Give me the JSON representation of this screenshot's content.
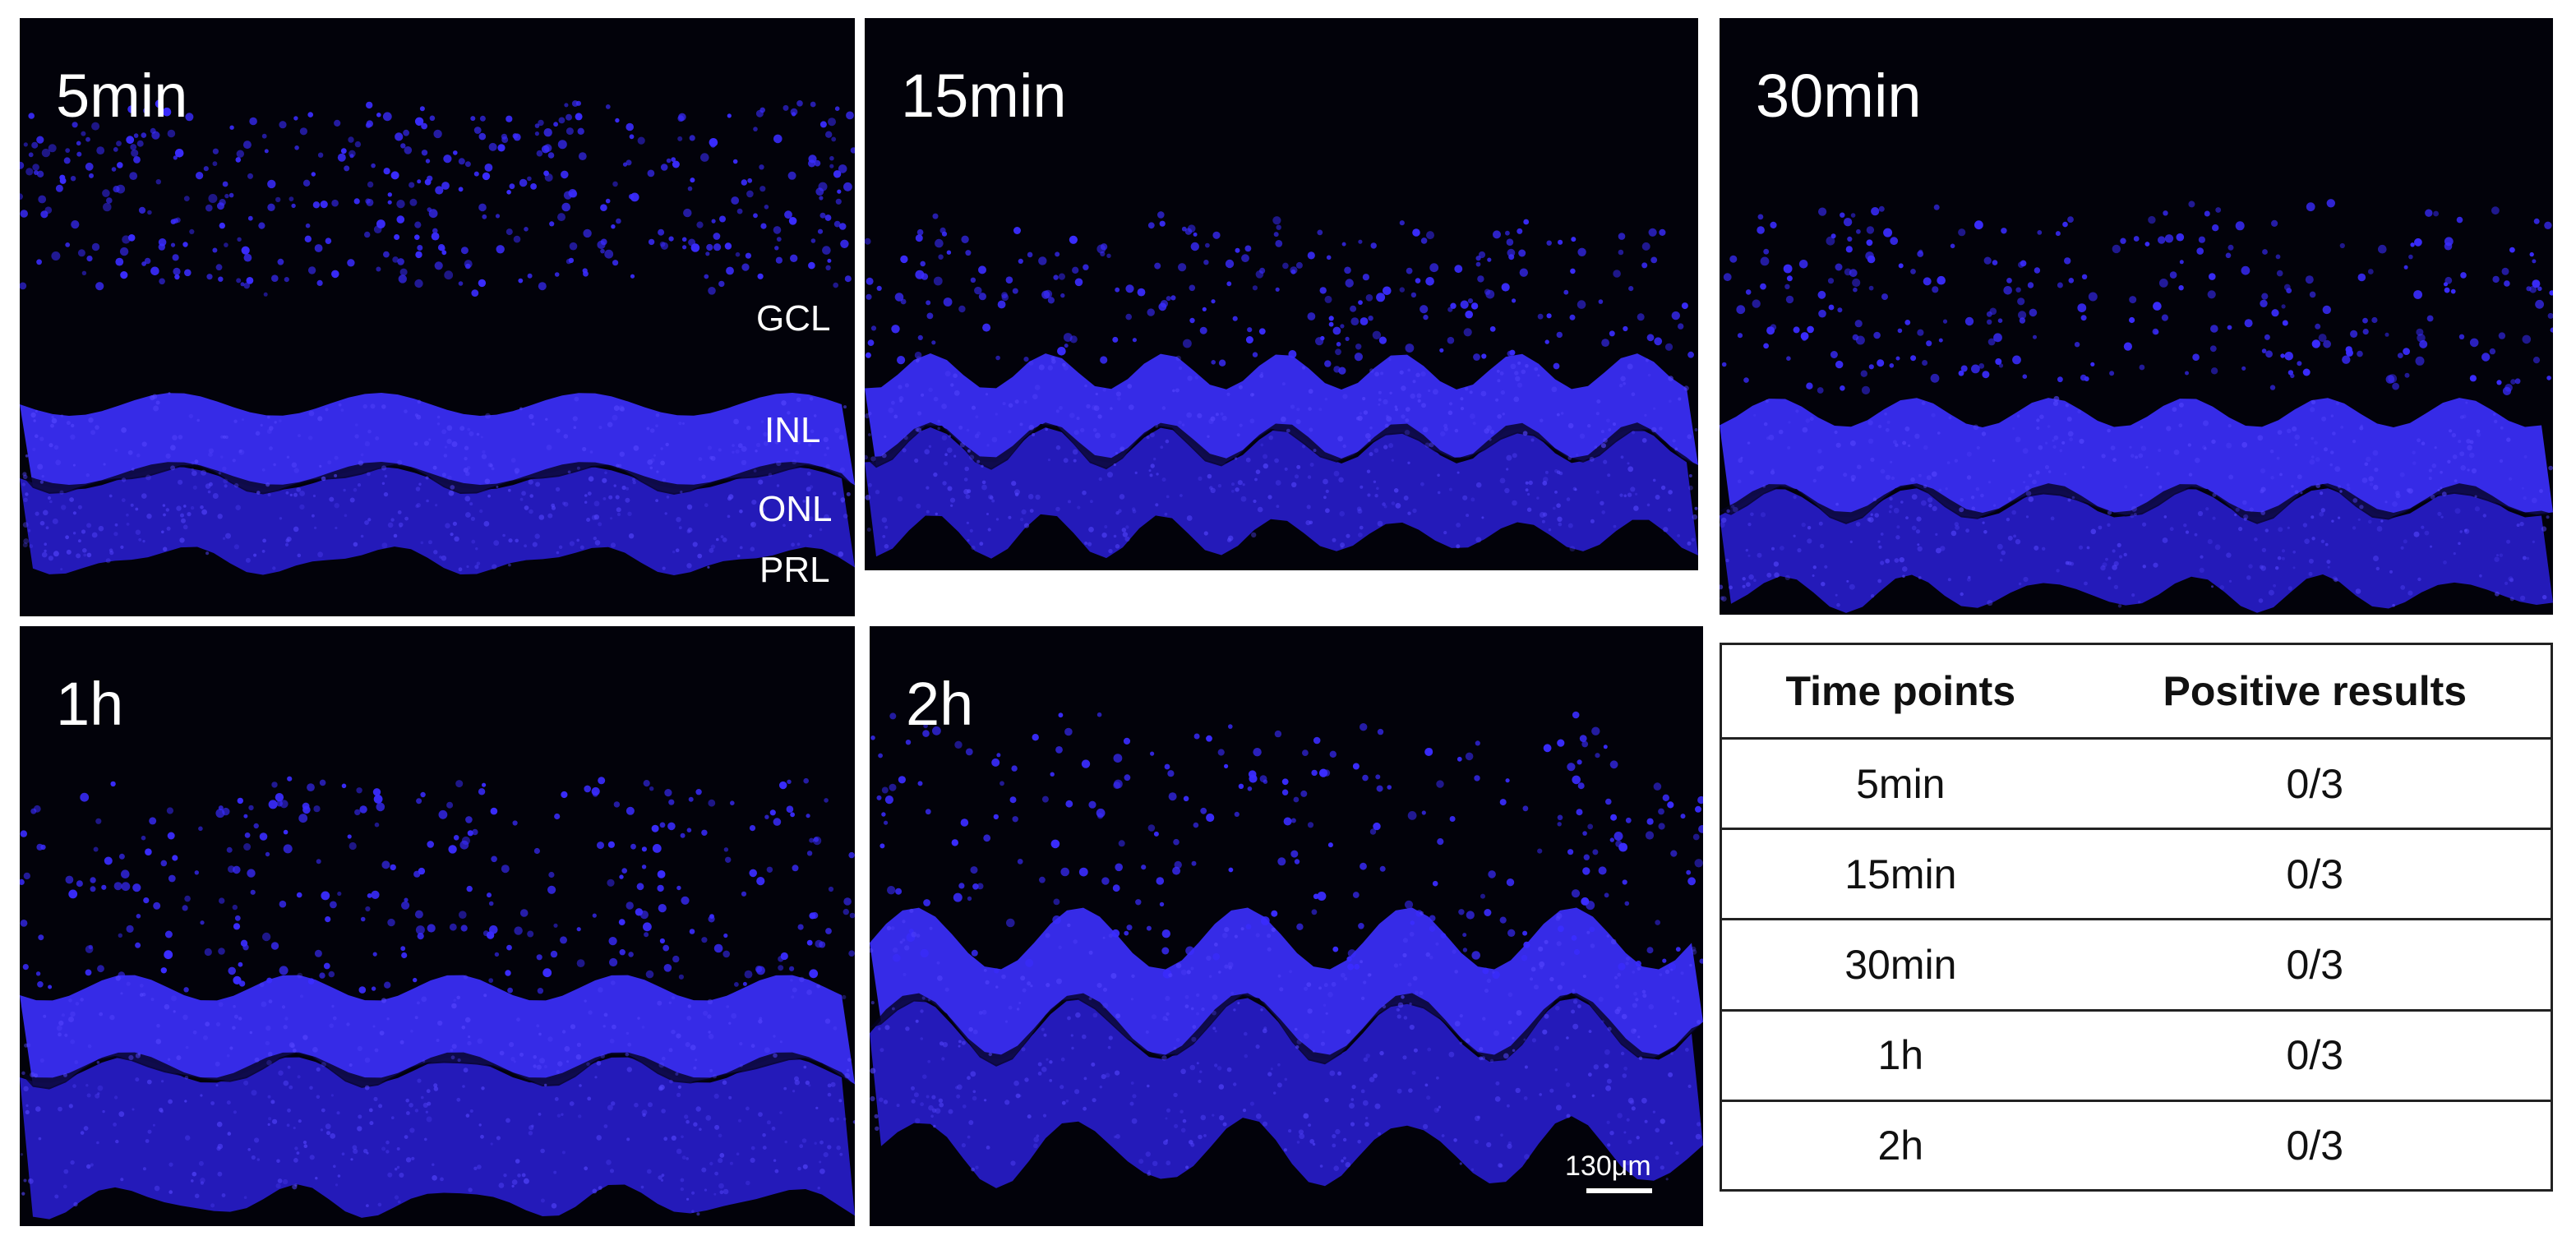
{
  "panels": [
    {
      "id": "p5min",
      "label": "5min"
    },
    {
      "id": "p15min",
      "label": "15min"
    },
    {
      "id": "p30min",
      "label": "30min"
    },
    {
      "id": "p1h",
      "label": "1h"
    },
    {
      "id": "p2h",
      "label": "2h"
    }
  ],
  "layer_labels": {
    "gcl": "GCL",
    "inl": "INL",
    "onl": "ONL",
    "prl": "PRL"
  },
  "scale_bar": {
    "text": "130μm"
  },
  "table": {
    "headers": [
      "Time points",
      "Positive results"
    ],
    "rows": [
      [
        "5min",
        "0/3"
      ],
      [
        "15min",
        "0/3"
      ],
      [
        "30min",
        "0/3"
      ],
      [
        "1h",
        "0/3"
      ],
      [
        "2h",
        "0/3"
      ]
    ]
  },
  "colors": {
    "background": "#02020a",
    "nuclei": "#3a2cff",
    "layer_dim": "#2a1fd8",
    "layer_bright": "#3c30ff"
  }
}
